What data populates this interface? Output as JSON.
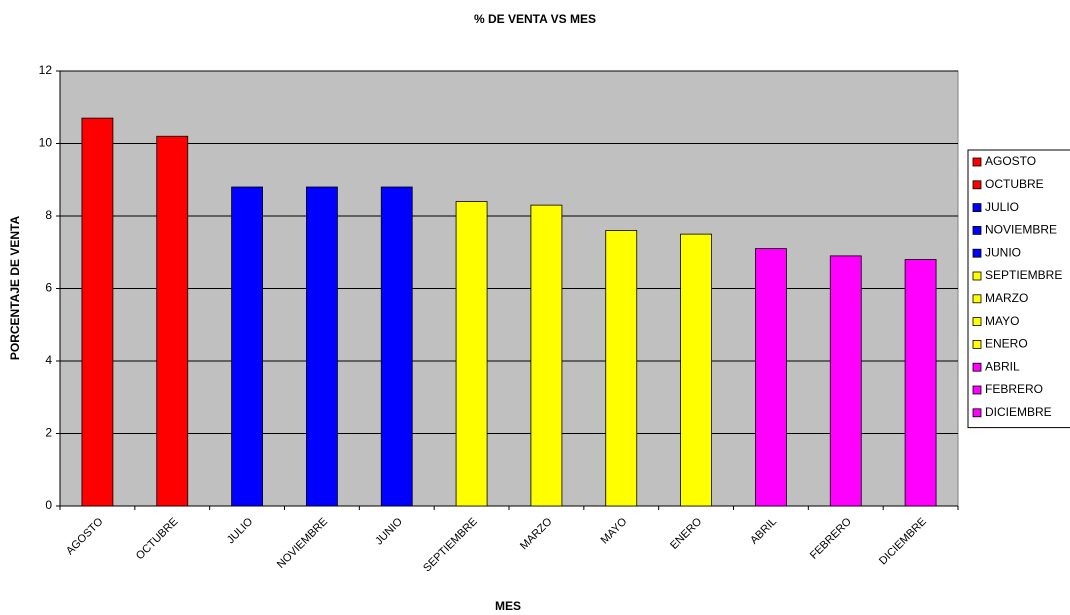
{
  "chart_data": {
    "type": "bar",
    "title": "% DE VENTA VS MES",
    "x_label": "MES",
    "y_label": "PORCENTAJE DE VENTA",
    "categories": [
      "AGOSTO",
      "OCTUBRE",
      "JULIO",
      "NOVIEMBRE",
      "JUNIO",
      "SEPTIEMBRE",
      "MARZO",
      "MAYO",
      "ENERO",
      "ABRIL",
      "FEBRERO",
      "DICIEMBRE"
    ],
    "values": [
      10.7,
      10.2,
      8.8,
      8.8,
      8.8,
      8.4,
      8.3,
      7.6,
      7.5,
      7.1,
      6.9,
      6.8
    ],
    "colors": [
      "#ff0000",
      "#ff0000",
      "#0000ff",
      "#0000ff",
      "#0000ff",
      "#ffff00",
      "#ffff00",
      "#ffff00",
      "#ffff00",
      "#ff00ff",
      "#ff00ff",
      "#ff00ff"
    ],
    "ylim": [
      0,
      12
    ],
    "yticks": [
      0,
      2,
      4,
      6,
      8,
      10,
      12
    ],
    "grid": true,
    "legend": "right"
  }
}
